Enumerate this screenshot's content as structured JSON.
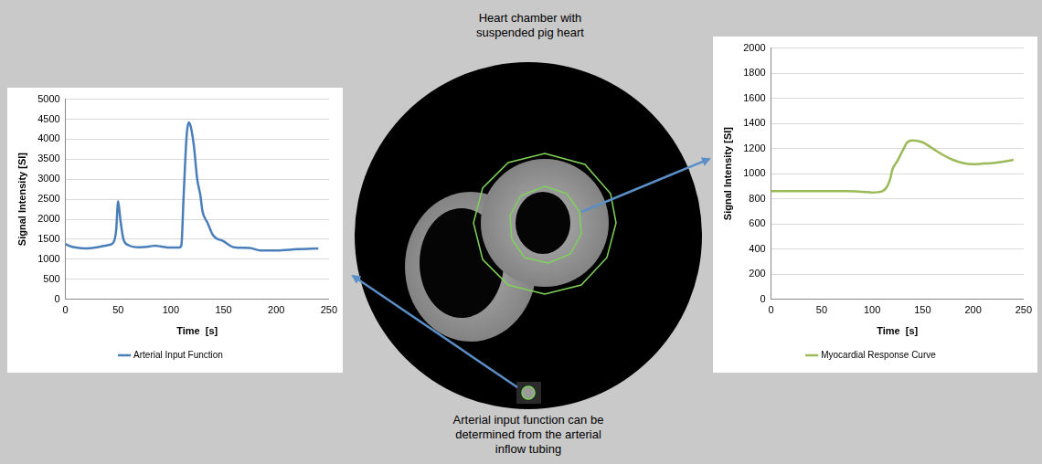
{
  "header": {
    "title": "Heart chamber with suspended pig heart"
  },
  "caption": "Arterial input function can be determined from the arterial inflow tubing",
  "chart_data": [
    {
      "type": "line",
      "x_label": "Time  [s]",
      "y_label": "Signal Intensity [SI]",
      "xlim": [
        0,
        250
      ],
      "xticks": [
        0,
        50,
        100,
        150,
        200,
        250
      ],
      "ylim": [
        0,
        5000
      ],
      "yticks": [
        0,
        500,
        1000,
        1500,
        2000,
        2500,
        3000,
        3500,
        4000,
        4500,
        5000
      ],
      "grid": true,
      "legend": "bottom",
      "x": [
        0,
        5,
        10,
        20,
        30,
        40,
        45,
        48,
        50,
        52,
        55,
        60,
        70,
        80,
        85,
        90,
        100,
        108,
        110,
        112,
        115,
        117,
        119,
        122,
        125,
        128,
        130,
        135,
        140,
        150,
        160,
        175,
        185,
        200,
        220,
        240
      ],
      "series": [
        {
          "name": "Arterial Input Function",
          "color": "#4a7ebb",
          "values": [
            1380,
            1320,
            1290,
            1270,
            1300,
            1350,
            1400,
            1700,
            2450,
            2000,
            1500,
            1350,
            1300,
            1320,
            1340,
            1320,
            1290,
            1290,
            1350,
            2500,
            4100,
            4420,
            4300,
            3800,
            3000,
            2600,
            2200,
            1900,
            1600,
            1450,
            1300,
            1280,
            1220,
            1220,
            1250,
            1270
          ]
        }
      ]
    },
    {
      "type": "line",
      "x_label": "Time  [s]",
      "y_label": "Signal Intensity [SI]",
      "xlim": [
        0,
        250
      ],
      "xticks": [
        0,
        50,
        100,
        150,
        200,
        250
      ],
      "ylim": [
        0,
        2000
      ],
      "yticks": [
        0,
        200,
        400,
        600,
        800,
        1000,
        1200,
        1400,
        1600,
        1800,
        2000
      ],
      "grid": true,
      "legend": "bottom",
      "x": [
        0,
        25,
        50,
        75,
        90,
        100,
        110,
        115,
        118,
        120,
        125,
        130,
        135,
        140,
        150,
        160,
        170,
        180,
        190,
        200,
        210,
        220,
        230,
        240
      ],
      "series": [
        {
          "name": "Myocardial Response Curve",
          "color": "#9bbb59",
          "values": [
            860,
            860,
            860,
            860,
            855,
            850,
            860,
            900,
            960,
            1030,
            1100,
            1180,
            1250,
            1265,
            1250,
            1200,
            1150,
            1110,
            1085,
            1075,
            1080,
            1085,
            1095,
            1110
          ]
        }
      ]
    }
  ]
}
